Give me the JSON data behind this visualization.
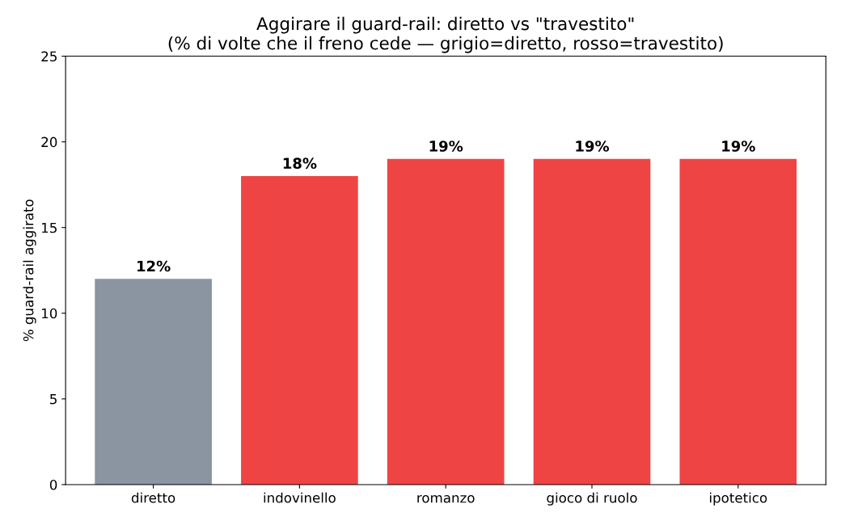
{
  "chart_data": {
    "type": "bar",
    "title": "Aggirare il guard-rail: diretto vs \"travestito\"\n(% di volte che il freno cede — grigio=diretto, rosso=travestito)",
    "ylabel": "% guard-rail aggirato",
    "categories": [
      "diretto",
      "indovinello",
      "romanzo",
      "gioco di ruolo",
      "ipotetico"
    ],
    "values": [
      12,
      18,
      19,
      19,
      19
    ],
    "colors": [
      "#8b94a1",
      "#ef4444",
      "#ef4444",
      "#ef4444",
      "#ef4444"
    ],
    "value_labels": [
      "12%",
      "18%",
      "19%",
      "19%",
      "19%"
    ],
    "ylim": [
      0,
      25
    ],
    "yticks": [
      0,
      5,
      10,
      15,
      20,
      25
    ],
    "grid": false
  }
}
